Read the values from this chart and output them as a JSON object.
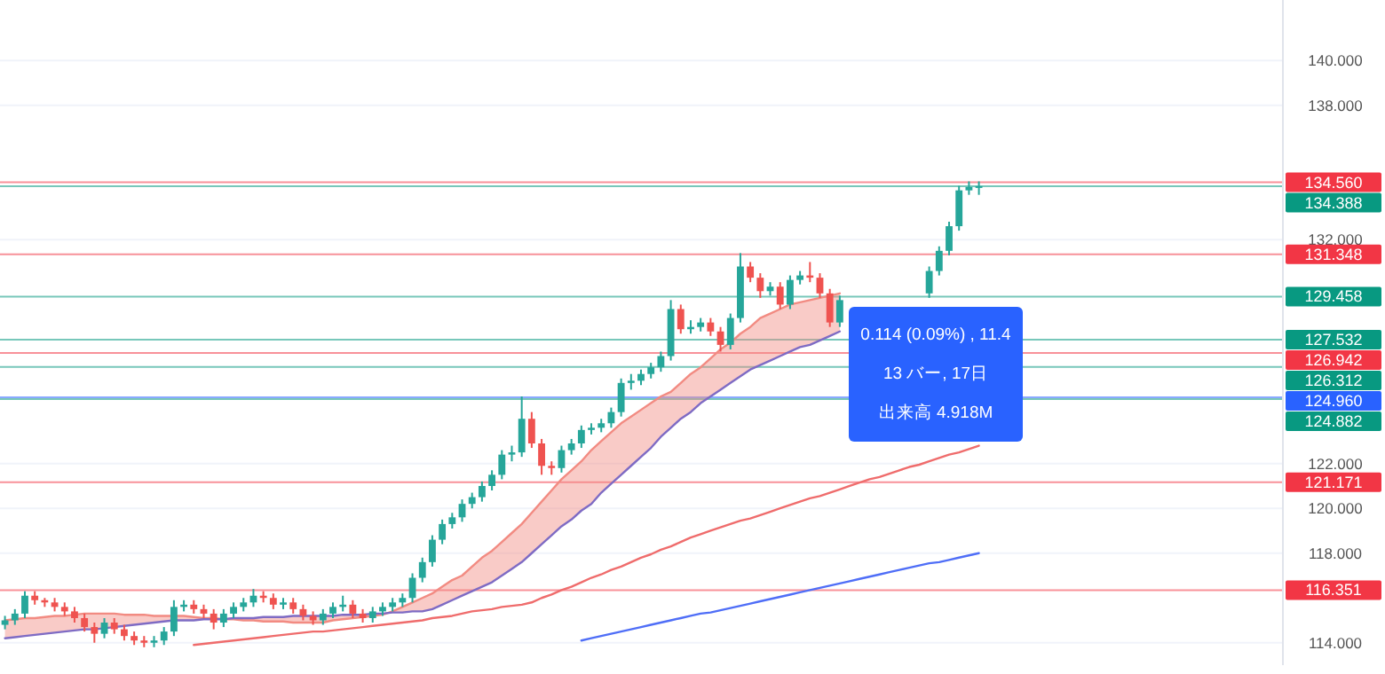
{
  "chart_data": {
    "type": "candlestick",
    "categories": [
      null,
      null,
      null,
      null,
      null,
      null,
      null,
      null,
      null,
      null,
      null,
      null,
      null,
      null,
      null,
      null,
      null,
      null,
      null,
      null,
      null,
      null,
      null,
      null,
      null,
      null,
      null,
      null,
      null,
      null,
      null,
      null,
      null,
      null,
      null,
      null,
      null,
      null,
      null,
      null,
      null,
      null,
      null,
      null,
      null,
      null,
      null,
      null,
      null,
      null,
      null,
      null,
      null,
      null,
      null,
      null,
      null,
      null,
      null,
      null,
      null,
      null,
      null,
      null,
      null,
      null,
      null,
      null,
      null,
      null,
      null,
      null,
      null,
      null,
      null,
      null,
      null,
      null,
      null,
      null,
      null,
      null,
      null,
      null,
      null,
      null,
      null,
      null,
      null,
      null,
      null,
      null,
      null,
      null,
      null,
      null,
      null,
      null,
      null,
      null,
      null,
      null,
      null,
      null,
      null,
      null,
      null,
      null,
      null,
      null,
      null,
      null,
      null,
      null,
      null,
      null,
      null,
      null,
      null,
      null,
      null,
      null,
      null,
      null,
      null,
      null,
      null,
      null,
      null
    ],
    "ohlc": [
      [
        114.8,
        115.2,
        114.6,
        115.0
      ],
      [
        115.0,
        115.5,
        114.8,
        115.3
      ],
      [
        115.3,
        116.3,
        115.1,
        116.1
      ],
      [
        116.1,
        116.3,
        115.7,
        115.9
      ],
      [
        115.9,
        116.0,
        115.6,
        115.8
      ],
      [
        115.8,
        116.0,
        115.4,
        115.6
      ],
      [
        115.6,
        115.8,
        115.2,
        115.4
      ],
      [
        115.4,
        115.6,
        114.9,
        115.1
      ],
      [
        115.1,
        115.3,
        114.5,
        114.7
      ],
      [
        114.7,
        114.9,
        114.0,
        114.4
      ],
      [
        114.4,
        115.1,
        114.2,
        114.9
      ],
      [
        114.9,
        115.1,
        114.4,
        114.6
      ],
      [
        114.6,
        114.8,
        114.1,
        114.3
      ],
      [
        114.3,
        114.5,
        113.9,
        114.1
      ],
      [
        114.1,
        114.3,
        113.8,
        114.0
      ],
      [
        114.0,
        114.3,
        113.8,
        114.1
      ],
      [
        114.1,
        114.7,
        113.9,
        114.5
      ],
      [
        114.5,
        115.9,
        114.3,
        115.6
      ],
      [
        115.6,
        115.9,
        115.4,
        115.7
      ],
      [
        115.7,
        115.9,
        115.3,
        115.5
      ],
      [
        115.5,
        115.7,
        115.1,
        115.3
      ],
      [
        115.3,
        115.5,
        114.6,
        114.9
      ],
      [
        114.9,
        115.5,
        114.7,
        115.3
      ],
      [
        115.3,
        115.8,
        115.1,
        115.6
      ],
      [
        115.6,
        116.0,
        115.4,
        115.8
      ],
      [
        115.8,
        116.4,
        115.6,
        116.1
      ],
      [
        116.1,
        116.3,
        115.8,
        116.0
      ],
      [
        116.0,
        116.2,
        115.5,
        115.7
      ],
      [
        115.7,
        116.0,
        115.5,
        115.8
      ],
      [
        115.8,
        116.0,
        115.3,
        115.5
      ],
      [
        115.5,
        115.7,
        115.0,
        115.2
      ],
      [
        115.2,
        115.4,
        114.8,
        115.0
      ],
      [
        115.0,
        115.5,
        114.8,
        115.3
      ],
      [
        115.3,
        115.8,
        115.1,
        115.6
      ],
      [
        115.6,
        116.1,
        115.4,
        115.7
      ],
      [
        115.7,
        115.9,
        115.1,
        115.3
      ],
      [
        115.3,
        115.5,
        114.9,
        115.1
      ],
      [
        115.1,
        115.6,
        114.9,
        115.4
      ],
      [
        115.4,
        115.8,
        115.2,
        115.6
      ],
      [
        115.6,
        116.0,
        115.4,
        115.8
      ],
      [
        115.8,
        116.2,
        115.6,
        116.0
      ],
      [
        116.0,
        117.1,
        115.8,
        116.9
      ],
      [
        116.9,
        117.8,
        116.7,
        117.6
      ],
      [
        117.6,
        118.8,
        117.4,
        118.6
      ],
      [
        118.6,
        119.5,
        118.4,
        119.3
      ],
      [
        119.3,
        119.8,
        119.1,
        119.6
      ],
      [
        119.6,
        120.4,
        119.4,
        120.2
      ],
      [
        120.2,
        120.7,
        120.0,
        120.5
      ],
      [
        120.5,
        121.2,
        120.3,
        121.0
      ],
      [
        121.0,
        121.7,
        120.8,
        121.5
      ],
      [
        121.5,
        122.6,
        121.3,
        122.4
      ],
      [
        122.4,
        122.8,
        122.1,
        122.5
      ],
      [
        122.5,
        125.0,
        122.3,
        124.0
      ],
      [
        124.0,
        124.3,
        122.7,
        122.9
      ],
      [
        122.9,
        123.1,
        121.5,
        121.9
      ],
      [
        121.9,
        122.1,
        121.5,
        121.8
      ],
      [
        121.8,
        122.8,
        121.6,
        122.6
      ],
      [
        122.6,
        123.1,
        122.4,
        122.9
      ],
      [
        122.9,
        123.7,
        122.7,
        123.5
      ],
      [
        123.5,
        123.8,
        123.3,
        123.6
      ],
      [
        123.6,
        124.0,
        123.4,
        123.8
      ],
      [
        123.8,
        124.5,
        123.6,
        124.3
      ],
      [
        124.3,
        125.8,
        124.1,
        125.6
      ],
      [
        125.6,
        126.0,
        125.3,
        125.7
      ],
      [
        125.7,
        126.2,
        125.5,
        126.0
      ],
      [
        126.0,
        126.5,
        125.8,
        126.3
      ],
      [
        126.3,
        127.0,
        126.1,
        126.8
      ],
      [
        126.8,
        129.3,
        126.6,
        128.9
      ],
      [
        128.9,
        129.1,
        127.8,
        128.0
      ],
      [
        128.0,
        128.4,
        127.8,
        128.1
      ],
      [
        128.1,
        128.5,
        127.9,
        128.3
      ],
      [
        128.3,
        128.5,
        127.7,
        127.9
      ],
      [
        127.9,
        128.1,
        127.0,
        127.3
      ],
      [
        127.3,
        128.7,
        127.1,
        128.5
      ],
      [
        128.5,
        131.4,
        128.3,
        130.8
      ],
      [
        130.8,
        131.0,
        130.1,
        130.3
      ],
      [
        130.3,
        130.5,
        129.4,
        129.7
      ],
      [
        129.7,
        130.1,
        129.5,
        129.9
      ],
      [
        129.9,
        130.1,
        128.9,
        129.1
      ],
      [
        129.1,
        130.4,
        128.9,
        130.2
      ],
      [
        130.2,
        130.6,
        130.0,
        130.4
      ],
      [
        130.4,
        131.0,
        130.1,
        130.3
      ],
      [
        130.3,
        130.5,
        129.4,
        129.6
      ],
      [
        129.6,
        129.8,
        128.1,
        128.3
      ],
      [
        128.3,
        129.5,
        128.1,
        129.3
      ],
      null,
      null,
      null,
      null,
      null,
      null,
      null,
      null,
      [
        129.6,
        130.8,
        129.4,
        130.6
      ],
      [
        130.6,
        131.7,
        130.4,
        131.5
      ],
      [
        131.5,
        132.8,
        131.3,
        132.6
      ],
      [
        132.6,
        134.4,
        132.4,
        134.2
      ],
      [
        134.2,
        134.6,
        134.0,
        134.35
      ],
      [
        134.35,
        134.6,
        134.0,
        134.388
      ],
      null,
      null,
      null,
      null,
      null,
      null,
      null,
      null,
      null,
      null,
      null,
      null,
      null,
      null,
      null,
      null,
      null,
      null,
      null,
      null,
      null,
      null,
      null,
      null,
      null,
      null,
      null,
      null,
      null,
      null
    ],
    "colors": [
      "#26a69a",
      "#26a69a",
      "#26a69a",
      "#ef5350",
      "#ef5350",
      "#ef5350",
      "#ef5350",
      "#ef5350",
      "#ef5350",
      "#ef5350",
      "#26a69a",
      "#ef5350",
      "#ef5350",
      "#ef5350",
      "#ef5350",
      "#26a69a",
      "#26a69a",
      "#26a69a",
      "#26a69a",
      "#ef5350",
      "#ef5350",
      "#ef5350",
      "#26a69a",
      "#26a69a",
      "#26a69a",
      "#26a69a",
      "#ef5350",
      "#ef5350",
      "#26a69a",
      "#ef5350",
      "#ef5350",
      "#ef5350",
      "#26a69a",
      "#26a69a",
      "#26a69a",
      "#ef5350",
      "#ef5350",
      "#26a69a",
      "#26a69a",
      "#26a69a",
      "#26a69a",
      "#26a69a",
      "#26a69a",
      "#26a69a",
      "#26a69a",
      "#26a69a",
      "#26a69a",
      "#26a69a",
      "#26a69a",
      "#26a69a",
      "#26a69a",
      "#26a69a",
      "#26a69a",
      "#ef5350",
      "#ef5350",
      "#ef5350",
      "#26a69a",
      "#26a69a",
      "#26a69a",
      "#26a69a",
      "#26a69a",
      "#26a69a",
      "#26a69a",
      "#26a69a",
      "#26a69a",
      "#26a69a",
      "#26a69a",
      "#26a69a",
      "#ef5350",
      "#26a69a",
      "#26a69a",
      "#ef5350",
      "#ef5350",
      "#26a69a",
      "#26a69a",
      "#ef5350",
      "#ef5350",
      "#26a69a",
      "#ef5350",
      "#26a69a",
      "#26a69a",
      "#ef5350",
      "#ef5350",
      "#ef5350",
      "#26a69a",
      null,
      null,
      null,
      null,
      null,
      null,
      null,
      null,
      "#26a69a",
      "#26a69a",
      "#26a69a",
      "#26a69a",
      "#26a69a",
      "#26a69a",
      null,
      null,
      null,
      null,
      null,
      null,
      null,
      null,
      null,
      null,
      null,
      null,
      null,
      null,
      null,
      null,
      null,
      null,
      null,
      null,
      null,
      null,
      null,
      null,
      null,
      null,
      null,
      null,
      null,
      null
    ],
    "series": [
      {
        "type": "line",
        "color": "#f28b82",
        "values": [
          115.0,
          115.05,
          115.1,
          115.1,
          115.15,
          115.2,
          115.2,
          115.25,
          115.3,
          115.3,
          115.3,
          115.3,
          115.25,
          115.25,
          115.25,
          115.2,
          115.2,
          115.2,
          115.2,
          115.15,
          115.1,
          115.1,
          115.05,
          115.05,
          115.0,
          115.0,
          114.95,
          114.95,
          114.95,
          114.9,
          114.9,
          114.9,
          114.9,
          115.0,
          115.05,
          115.1,
          115.15,
          115.2,
          115.25,
          115.4,
          115.6,
          115.8,
          116.0,
          116.2,
          116.5,
          116.8,
          117.0,
          117.4,
          117.8,
          118.1,
          118.5,
          118.9,
          119.3,
          119.8,
          120.3,
          120.8,
          121.3,
          121.7,
          122.1,
          122.6,
          123.0,
          123.4,
          123.8,
          124.1,
          124.4,
          124.7,
          125.0,
          125.2,
          125.6,
          126.0,
          126.3,
          126.7,
          127.1,
          127.4,
          127.8,
          128.1,
          128.5,
          128.7,
          128.9,
          129.1,
          129.2,
          129.3,
          129.4,
          129.5,
          129.6,
          null,
          null,
          null,
          null,
          null,
          null,
          null,
          null,
          null,
          null,
          null,
          null,
          null,
          null,
          null,
          null,
          null,
          null,
          null,
          null,
          null,
          null,
          null,
          null,
          null,
          null,
          null,
          null,
          null,
          null,
          null,
          null,
          null,
          null,
          null,
          null,
          null,
          null,
          null,
          null,
          null,
          null,
          null,
          null
        ],
        "upper": [
          115.0,
          115.05,
          115.1,
          115.1,
          115.15,
          115.2,
          115.2,
          115.25,
          115.3,
          115.3,
          115.3,
          115.3,
          115.25,
          115.25,
          115.25,
          115.2,
          115.2,
          115.2,
          115.2,
          115.15,
          115.1,
          115.1,
          115.05,
          115.05,
          115.0,
          115.0,
          114.95,
          114.95,
          114.95,
          114.9,
          114.9,
          114.9,
          114.9,
          115.0,
          115.05,
          115.1,
          115.15,
          115.2,
          115.25,
          115.4,
          115.6,
          115.8,
          116.0,
          116.2,
          116.5,
          116.8,
          117.0,
          117.4,
          117.8,
          118.1,
          118.5,
          118.9,
          119.3,
          119.8,
          120.3,
          120.8,
          121.3,
          121.7,
          122.1,
          122.6,
          123.0,
          123.4,
          123.8,
          124.1,
          124.4,
          124.7,
          125.0,
          125.2,
          125.6,
          126.0,
          126.3,
          126.7,
          127.1,
          127.4,
          127.8,
          128.1,
          128.5,
          128.7,
          128.9,
          129.1,
          129.2,
          129.3,
          129.4,
          129.5,
          129.6,
          null,
          null,
          null,
          null,
          null,
          null,
          null,
          null,
          null,
          null,
          null,
          null,
          null,
          null,
          null,
          null,
          null,
          null,
          null,
          null,
          null,
          null,
          null,
          null,
          null,
          null,
          null,
          null,
          null,
          null,
          null,
          null,
          null,
          null,
          null,
          null,
          null,
          null,
          null,
          null,
          null,
          null,
          null,
          null
        ],
        "lower": [
          114.2,
          114.25,
          114.3,
          114.35,
          114.4,
          114.45,
          114.5,
          114.55,
          114.6,
          114.6,
          114.65,
          114.7,
          114.75,
          114.8,
          114.85,
          114.9,
          114.95,
          115.0,
          115.0,
          115.0,
          115.05,
          115.05,
          115.05,
          115.1,
          115.1,
          115.1,
          115.15,
          115.15,
          115.15,
          115.2,
          115.2,
          115.2,
          115.2,
          115.2,
          115.25,
          115.25,
          115.25,
          115.3,
          115.3,
          115.35,
          115.35,
          115.4,
          115.4,
          115.5,
          115.7,
          115.9,
          116.1,
          116.3,
          116.5,
          116.7,
          117.0,
          117.3,
          117.6,
          118.0,
          118.4,
          118.8,
          119.2,
          119.5,
          119.9,
          120.2,
          120.7,
          121.1,
          121.5,
          121.9,
          122.3,
          122.7,
          123.2,
          123.6,
          124.0,
          124.3,
          124.7,
          125.0,
          125.3,
          125.6,
          125.9,
          126.2,
          126.4,
          126.6,
          126.8,
          127.0,
          127.2,
          127.3,
          127.5,
          127.7,
          127.9,
          null,
          null,
          null,
          null,
          null,
          null,
          null,
          null,
          null,
          null,
          null,
          null,
          null,
          null,
          null,
          null,
          null,
          null,
          null,
          null,
          null,
          null,
          null,
          null,
          null,
          null,
          null,
          null,
          null,
          null,
          null,
          null,
          null,
          null,
          null,
          null,
          null,
          null,
          null,
          null,
          null,
          null,
          null,
          null
        ]
      },
      {
        "type": "line",
        "color": "#7e6bc4",
        "values": [
          114.2,
          114.25,
          114.3,
          114.35,
          114.4,
          114.45,
          114.5,
          114.55,
          114.6,
          114.6,
          114.65,
          114.7,
          114.75,
          114.8,
          114.85,
          114.9,
          114.95,
          115.0,
          115.0,
          115.0,
          115.05,
          115.05,
          115.05,
          115.1,
          115.1,
          115.1,
          115.15,
          115.15,
          115.15,
          115.2,
          115.2,
          115.2,
          115.2,
          115.2,
          115.25,
          115.25,
          115.25,
          115.3,
          115.3,
          115.35,
          115.35,
          115.4,
          115.4,
          115.5,
          115.7,
          115.9,
          116.1,
          116.3,
          116.5,
          116.7,
          117.0,
          117.3,
          117.6,
          118.0,
          118.4,
          118.8,
          119.2,
          119.5,
          119.9,
          120.2,
          120.7,
          121.1,
          121.5,
          121.9,
          122.3,
          122.7,
          123.2,
          123.6,
          124.0,
          124.3,
          124.7,
          125.0,
          125.3,
          125.6,
          125.9,
          126.2,
          126.4,
          126.6,
          126.8,
          127.0,
          127.2,
          127.3,
          127.5,
          127.7,
          127.9,
          null,
          null,
          null,
          null,
          null,
          null,
          null,
          null,
          null,
          null,
          null,
          null,
          null,
          null,
          null,
          null,
          null,
          null,
          null,
          null,
          null,
          null,
          null,
          null,
          null,
          null,
          null,
          null,
          null,
          null,
          null,
          null,
          null,
          null,
          null,
          null,
          null,
          null,
          null,
          null,
          null,
          null,
          null,
          null
        ]
      },
      {
        "type": "line",
        "color": "#ef6c6c",
        "values": [
          null,
          null,
          null,
          null,
          null,
          null,
          null,
          null,
          null,
          null,
          null,
          null,
          null,
          null,
          null,
          null,
          null,
          null,
          null,
          113.9,
          113.95,
          114.0,
          114.05,
          114.1,
          114.15,
          114.2,
          114.25,
          114.3,
          114.35,
          114.4,
          114.45,
          114.5,
          114.5,
          114.55,
          114.6,
          114.65,
          114.7,
          114.75,
          114.8,
          114.85,
          114.9,
          114.95,
          115.0,
          115.1,
          115.15,
          115.2,
          115.3,
          115.4,
          115.45,
          115.5,
          115.6,
          115.65,
          115.7,
          115.8,
          116.0,
          116.15,
          116.35,
          116.5,
          116.7,
          116.9,
          117.05,
          117.25,
          117.4,
          117.6,
          117.8,
          117.95,
          118.15,
          118.3,
          118.5,
          118.7,
          118.85,
          119.0,
          119.15,
          119.3,
          119.45,
          119.55,
          119.7,
          119.85,
          120.0,
          120.15,
          120.3,
          120.45,
          120.55,
          120.7,
          120.85,
          121.0,
          121.15,
          121.3,
          121.4,
          121.55,
          121.7,
          121.85,
          121.95,
          122.1,
          122.25,
          122.4,
          122.5,
          122.65,
          122.8,
          null,
          null,
          null,
          null,
          null,
          null,
          null,
          null,
          null,
          null,
          null,
          null,
          null,
          null,
          null,
          null,
          null,
          null,
          null,
          null,
          null,
          null,
          null,
          null,
          null,
          null,
          null,
          null,
          null,
          null
        ]
      },
      {
        "type": "line",
        "color": "#4f6ef7",
        "values": [
          null,
          null,
          null,
          null,
          null,
          null,
          null,
          null,
          null,
          null,
          null,
          null,
          null,
          null,
          null,
          null,
          null,
          null,
          null,
          null,
          null,
          null,
          null,
          null,
          null,
          null,
          null,
          null,
          null,
          null,
          null,
          null,
          null,
          null,
          null,
          null,
          null,
          null,
          null,
          null,
          null,
          null,
          null,
          null,
          null,
          null,
          null,
          null,
          null,
          null,
          null,
          null,
          null,
          null,
          null,
          null,
          null,
          null,
          114.1,
          114.2,
          114.3,
          114.4,
          114.5,
          114.6,
          114.7,
          114.8,
          114.9,
          115.0,
          115.1,
          115.2,
          115.3,
          115.35,
          115.45,
          115.55,
          115.65,
          115.75,
          115.85,
          115.95,
          116.05,
          116.15,
          116.25,
          116.35,
          116.45,
          116.55,
          116.65,
          116.75,
          116.85,
          116.95,
          117.05,
          117.15,
          117.25,
          117.35,
          117.45,
          117.55,
          117.6,
          117.7,
          117.8,
          117.9,
          118.0,
          null,
          null,
          null,
          null,
          null,
          null,
          null,
          null,
          null,
          null,
          null,
          null,
          null,
          null,
          null,
          null,
          null,
          null,
          null,
          null,
          null,
          null,
          null,
          null,
          null,
          null,
          null,
          null,
          null,
          null
        ]
      }
    ],
    "ylim": [
      113.0,
      142.7
    ],
    "yticks": [
      {
        "value": 114,
        "label": "114.000"
      },
      {
        "value": 118,
        "label": "118.000"
      },
      {
        "value": 120,
        "label": "120.000"
      },
      {
        "value": 122,
        "label": "122.000"
      },
      {
        "value": 132,
        "label": "132.000"
      },
      {
        "value": 138,
        "label": "138.000"
      },
      {
        "value": 140,
        "label": "140.000"
      }
    ],
    "grid": "y",
    "ref_lines": [
      {
        "axis": "y",
        "value": 134.56,
        "label": "134.560",
        "color": "#f23645"
      },
      {
        "axis": "y",
        "value": 134.388,
        "label": "134.388",
        "color": "#089981"
      },
      {
        "axis": "y",
        "value": 131.348,
        "label": "131.348",
        "color": "#f23645"
      },
      {
        "axis": "y",
        "value": 129.458,
        "label": "129.458",
        "color": "#089981"
      },
      {
        "axis": "y",
        "value": 127.532,
        "label": "127.532",
        "color": "#089981"
      },
      {
        "axis": "y",
        "value": 126.942,
        "label": "126.942",
        "color": "#f23645"
      },
      {
        "axis": "y",
        "value": 126.312,
        "label": "126.312",
        "color": "#089981"
      },
      {
        "axis": "y",
        "value": 124.96,
        "label": "124.960",
        "color": "#2962ff"
      },
      {
        "axis": "y",
        "value": 124.882,
        "label": "124.882",
        "color": "#089981"
      },
      {
        "axis": "y",
        "value": 121.171,
        "label": "121.171",
        "color": "#f23645"
      },
      {
        "axis": "y",
        "value": 116.351,
        "label": "116.351",
        "color": "#f23645"
      }
    ],
    "annotations": [
      "0.114 (0.09%) , 11.4",
      "13 バー, 17日",
      "出来高 4.918M"
    ]
  }
}
